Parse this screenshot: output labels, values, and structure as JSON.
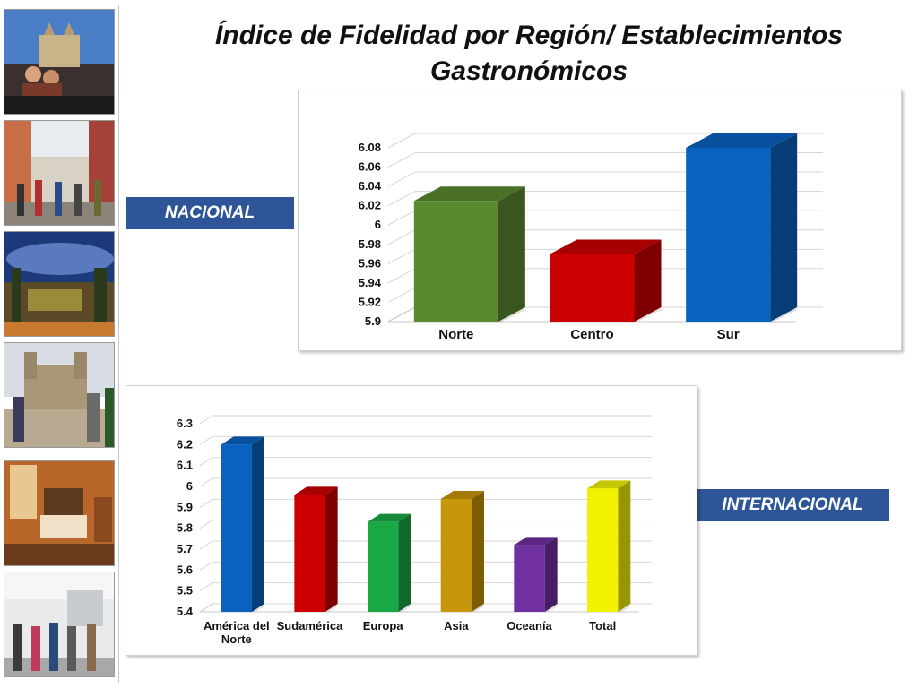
{
  "title": "Índice de Fidelidad por Región/ Establecimientos Gastronómicos",
  "labels": {
    "nacional": "NACIONAL",
    "internacional": "INTERNACIONAL"
  },
  "colors": {
    "label_box": "#2e5597"
  },
  "photos": [
    {
      "icon": "plaza-couple-photo"
    },
    {
      "icon": "street-crowd-photo"
    },
    {
      "icon": "night-courtyard-photo"
    },
    {
      "icon": "church-tourists-photo"
    },
    {
      "icon": "hotel-room-photo"
    },
    {
      "icon": "airport-crowd-photo"
    }
  ],
  "chart_data": [
    {
      "type": "bar",
      "style": "3d",
      "categories": [
        "Norte",
        "Centro",
        "Sur"
      ],
      "values": [
        6.025,
        5.97,
        6.08
      ],
      "colors": [
        "#5a8a30",
        "#cc0000",
        "#0a62c0"
      ],
      "ylim": [
        5.9,
        6.08
      ],
      "yticks": [
        "5.9",
        "5.92",
        "5.94",
        "5.96",
        "5.98",
        "6",
        "6.02",
        "6.04",
        "6.06",
        "6.08"
      ],
      "grid": true,
      "xlabel": "",
      "ylabel": ""
    },
    {
      "type": "bar",
      "style": "3d",
      "categories": [
        "América del Norte",
        "Sudamérica",
        "Europa",
        "Asia",
        "Oceanía",
        "Total"
      ],
      "values": [
        6.2,
        5.96,
        5.83,
        5.94,
        5.72,
        5.99
      ],
      "colors": [
        "#0a62c0",
        "#cc0000",
        "#1aa845",
        "#c8960a",
        "#7030a0",
        "#f2f200"
      ],
      "ylim": [
        5.4,
        6.3
      ],
      "yticks": [
        "5.4",
        "5.5",
        "5.6",
        "5.7",
        "5.8",
        "5.9",
        "6",
        "6.1",
        "6.2",
        "6.3"
      ],
      "grid": true,
      "xlabel": "",
      "ylabel": ""
    }
  ]
}
